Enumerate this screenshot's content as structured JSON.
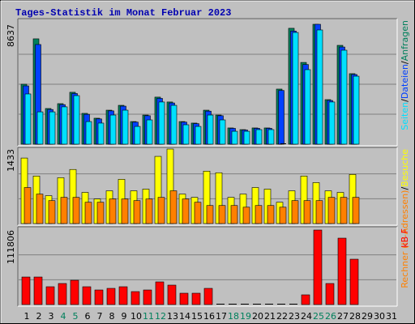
{
  "chart_data": [
    {
      "type": "bar",
      "title": "Tages-Statistik im Monat Februar 2023",
      "ylim": [
        0,
        8637
      ],
      "yticks": [
        8637
      ],
      "label_separator": "/",
      "series": [
        {
          "name": "Anfragen",
          "color": "#00805c",
          "values": [
            4320,
            7590,
            2570,
            2920,
            3740,
            2220,
            1870,
            2450,
            2800,
            1630,
            2100,
            3390,
            3040,
            1630,
            1520,
            2450,
            2100,
            1170,
            1050,
            1170,
            1170,
            3970,
            8350,
            5890,
            8637,
            3210,
            7120,
            5080,
            null,
            null,
            null
          ]
        },
        {
          "name": "Dateien",
          "color": "#0040ff",
          "values": [
            4200,
            7180,
            2500,
            2850,
            3650,
            2150,
            1820,
            2400,
            2740,
            1590,
            2050,
            3300,
            2970,
            1590,
            1480,
            2380,
            2050,
            1140,
            1020,
            1140,
            1140,
            3870,
            8150,
            5740,
            8637,
            3150,
            7000,
            5020,
            null,
            null,
            null
          ]
        },
        {
          "name": "Seiten",
          "color": "#00e0ff",
          "values": [
            3620,
            2330,
            2330,
            2690,
            3500,
            1630,
            1520,
            2100,
            2450,
            1280,
            1750,
            3040,
            2800,
            1400,
            1280,
            2100,
            1750,
            930,
            930,
            1050,
            1050,
            0,
            8050,
            5370,
            8230,
            3040,
            6770,
            4900,
            null,
            null,
            null
          ]
        }
      ]
    },
    {
      "type": "bar",
      "ylim": [
        0,
        1433
      ],
      "yticks": [
        1433
      ],
      "label_separator": "/",
      "series": [
        {
          "name": "Besuche",
          "color": "#ffff00",
          "values": [
            1260,
            914,
            536,
            882,
            1040,
            599,
            473,
            630,
            851,
            630,
            662,
            1292,
            1433,
            567,
            504,
            1008,
            977,
            504,
            567,
            693,
            662,
            410,
            630,
            914,
            788,
            630,
            599,
            945,
            null,
            null,
            null
          ]
        },
        {
          "name": "Rechner (IP-Adressen)",
          "color": "#ff8000",
          "values": [
            693,
            567,
            441,
            504,
            504,
            410,
            410,
            473,
            473,
            441,
            473,
            504,
            630,
            473,
            410,
            347,
            347,
            347,
            315,
            347,
            347,
            315,
            441,
            441,
            441,
            504,
            504,
            504,
            null,
            null,
            null
          ]
        }
      ]
    },
    {
      "type": "bar",
      "ylim": [
        0,
        111806
      ],
      "yticks": [
        111806
      ],
      "categories": [
        "1",
        "2",
        "3",
        "4",
        "5",
        "6",
        "7",
        "8",
        "9",
        "10",
        "11",
        "12",
        "13",
        "14",
        "15",
        "16",
        "17",
        "18",
        "19",
        "20",
        "21",
        "22",
        "23",
        "24",
        "25",
        "26",
        "27",
        "28",
        "29",
        "30",
        "31"
      ],
      "highlight": [
        3,
        4,
        10,
        11,
        17,
        18,
        24,
        25
      ],
      "highlight_color": "#00805c",
      "series": [
        {
          "name": "kB F",
          "color": "#ff0000",
          "values": [
            41310,
            41310,
            26730,
            31590,
            36450,
            26730,
            21870,
            24300,
            26730,
            19440,
            21870,
            34020,
            29160,
            17010,
            17010,
            24300,
            0,
            0,
            0,
            0,
            0,
            0,
            0,
            14580,
            111806,
            31590,
            99630,
            68040,
            null,
            null,
            null
          ]
        }
      ]
    }
  ]
}
